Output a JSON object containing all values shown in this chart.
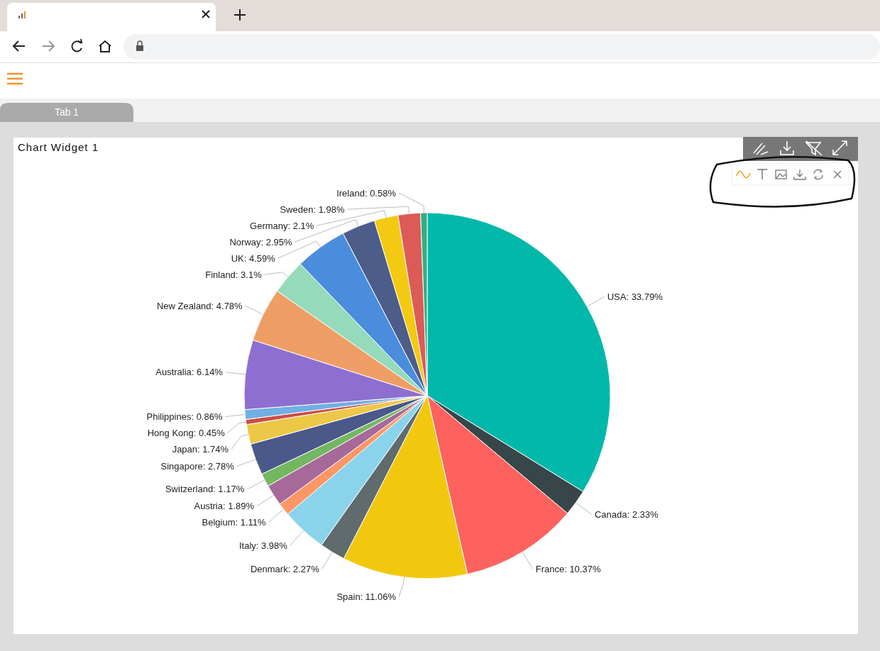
{
  "chart_data": {
    "type": "pie",
    "title": "Chart Widget 1",
    "annotations": [
      "Tab 1"
    ],
    "categories": [
      "USA",
      "Canada",
      "France",
      "Spain",
      "Denmark",
      "Italy",
      "Belgium",
      "Austria",
      "Switzerland",
      "Singapore",
      "Japan",
      "Hong Kong",
      "Philippines",
      "Australia",
      "New Zealand",
      "Finland",
      "UK",
      "Norway",
      "Germany",
      "Sweden",
      "Ireland"
    ],
    "values": [
      33.79,
      2.33,
      10.37,
      11.06,
      2.27,
      3.98,
      1.11,
      1.89,
      1.17,
      2.78,
      1.74,
      0.45,
      0.86,
      6.14,
      4.78,
      3.1,
      4.59,
      2.95,
      2.1,
      1.98,
      0.58
    ],
    "colors": [
      "#01b8aa",
      "#374649",
      "#fd625e",
      "#f2c80f",
      "#5f6b6d",
      "#8ad4eb",
      "#fe9666",
      "#a66999",
      "#73b761",
      "#4a588a",
      "#ecc846",
      "#cd4c46",
      "#71afe2",
      "#8d6fd1",
      "#ee9e64",
      "#95dabb",
      "#4a8ddc",
      "#4c5d8a",
      "#f3c911",
      "#dc5b57",
      "#33ae81"
    ],
    "value_labels": [
      "33.79%",
      "2.33%",
      "10.37%",
      "11.06%",
      "2.27%",
      "3.98%",
      "1.11%",
      "1.89%",
      "1.17%",
      "2.78%",
      "1.74%",
      "0.45%",
      "0.86%",
      "6.14%",
      "4.78%",
      "3.1%",
      "4.59%",
      "2.95%",
      "2.1%",
      "1.98%",
      "0.58%"
    ]
  }
}
